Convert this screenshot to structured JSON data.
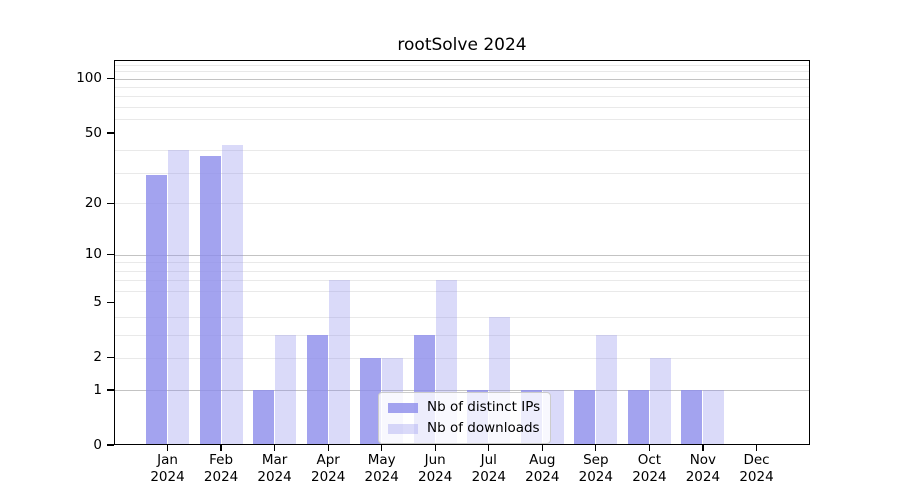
{
  "chart_data": {
    "type": "bar",
    "title": "rootSolve 2024",
    "categories": [
      "Jan 2024",
      "Feb 2024",
      "Mar 2024",
      "Apr 2024",
      "May 2024",
      "Jun 2024",
      "Jul 2024",
      "Aug 2024",
      "Sep 2024",
      "Oct 2024",
      "Nov 2024",
      "Dec 2024"
    ],
    "series": [
      {
        "name": "Nb of distinct IPs",
        "color": "rgba(140,140,235,0.8)",
        "values": [
          29,
          37,
          1,
          3,
          2,
          3,
          1,
          1,
          1,
          1,
          1,
          0
        ]
      },
      {
        "name": "Nb of downloads",
        "color": "rgba(140,140,235,0.32)",
        "values": [
          40,
          43,
          3,
          7,
          2,
          7,
          4,
          1,
          3,
          2,
          1,
          0
        ]
      }
    ],
    "yscale": "log1p",
    "ylim": [
      0,
      127
    ],
    "y_tick_values": [
      0,
      1,
      2,
      5,
      10,
      20,
      50,
      100
    ],
    "major_gridlines": [
      1,
      10,
      100
    ],
    "minor_gridlines": [
      2,
      3,
      4,
      6,
      7,
      8,
      9,
      20,
      30,
      40,
      60,
      70,
      80,
      90,
      110,
      120
    ],
    "grid": "on",
    "legend_position": "inside lower center",
    "colors": {
      "major_grid": "#c3c3c3",
      "minor_grid": "#e9e9e9",
      "axis": "#000000",
      "text": "#000000",
      "background": "#ffffff"
    }
  }
}
